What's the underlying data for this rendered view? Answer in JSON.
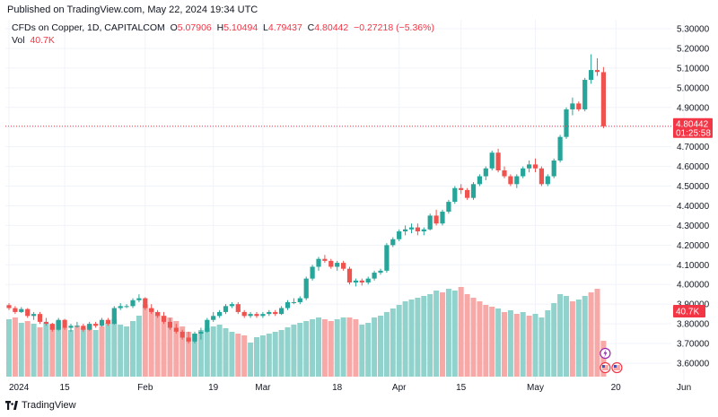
{
  "header": {
    "published": "Published on TradingView.com, May 22, 2024 19:34 UTC"
  },
  "legend": {
    "symbol": "CFDs on Copper, 1D, CAPITALCOM",
    "o_label": "O",
    "o_value": "5.07906",
    "h_label": "H",
    "h_value": "5.10494",
    "l_label": "L",
    "l_value": "4.79437",
    "c_label": "C",
    "c_value": "4.80442",
    "change": "−0.27218 (−5.36%)",
    "vol_label": "Vol",
    "vol_value": "40.7K"
  },
  "footer": {
    "brand": "TradingView"
  },
  "colors": {
    "up": "#26a69a",
    "down": "#ef5350",
    "vol_up": "#92d2cc",
    "vol_down": "#f7a9a7",
    "grid": "#f0f3fa",
    "price_tag": "#f23645",
    "price_line": "#f23645"
  },
  "chart_data": {
    "type": "candlestick",
    "title": "CFDs on Copper, 1D, CAPITALCOM",
    "ylim": [
      3.54,
      5.35
    ],
    "y_ticks": [
      "5.30000",
      "5.20000",
      "5.10000",
      "5.00000",
      "4.90000",
      "4.80000",
      "4.70000",
      "4.60000",
      "4.50000",
      "4.40000",
      "4.30000",
      "4.20000",
      "4.10000",
      "4.00000",
      "3.90000",
      "3.80000",
      "3.70000",
      "3.60000"
    ],
    "x_ticks": [
      {
        "label": "2024",
        "index": 0
      },
      {
        "label": "15",
        "index": 9
      },
      {
        "label": "Feb",
        "index": 22
      },
      {
        "label": "19",
        "index": 33
      },
      {
        "label": "Mar",
        "index": 41
      },
      {
        "label": "18",
        "index": 53
      },
      {
        "label": "Apr",
        "index": 63
      },
      {
        "label": "15",
        "index": 73
      },
      {
        "label": "May",
        "index": 85
      },
      {
        "label": "20",
        "index": 98
      },
      {
        "label": "Jun",
        "index": 109
      }
    ],
    "last_price": "4.80442",
    "countdown": "01:25:58",
    "volume_label": "40.7K",
    "volume_max": 100,
    "candles": [
      [
        3.895,
        3.905,
        3.87,
        3.88
      ],
      [
        3.88,
        3.89,
        3.85,
        3.86
      ],
      [
        3.86,
        3.885,
        3.855,
        3.875
      ],
      [
        3.875,
        3.88,
        3.83,
        3.84
      ],
      [
        3.84,
        3.86,
        3.82,
        3.85
      ],
      [
        3.85,
        3.86,
        3.8,
        3.81
      ],
      [
        3.81,
        3.83,
        3.79,
        3.8
      ],
      [
        3.8,
        3.805,
        3.76,
        3.77
      ],
      [
        3.77,
        3.83,
        3.765,
        3.82
      ],
      [
        3.82,
        3.825,
        3.77,
        3.78
      ],
      [
        3.78,
        3.8,
        3.76,
        3.79
      ],
      [
        3.79,
        3.81,
        3.78,
        3.79
      ],
      [
        3.79,
        3.8,
        3.76,
        3.77
      ],
      [
        3.77,
        3.81,
        3.765,
        3.8
      ],
      [
        3.8,
        3.81,
        3.78,
        3.79
      ],
      [
        3.79,
        3.83,
        3.785,
        3.82
      ],
      [
        3.82,
        3.83,
        3.79,
        3.8
      ],
      [
        3.8,
        3.89,
        3.795,
        3.88
      ],
      [
        3.88,
        3.905,
        3.87,
        3.89
      ],
      [
        3.89,
        3.9,
        3.88,
        3.89
      ],
      [
        3.89,
        3.93,
        3.88,
        3.92
      ],
      [
        3.92,
        3.95,
        3.91,
        3.93
      ],
      [
        3.93,
        3.935,
        3.87,
        3.88
      ],
      [
        3.88,
        3.9,
        3.85,
        3.86
      ],
      [
        3.86,
        3.87,
        3.83,
        3.84
      ],
      [
        3.84,
        3.86,
        3.8,
        3.81
      ],
      [
        3.81,
        3.83,
        3.77,
        3.78
      ],
      [
        3.78,
        3.8,
        3.75,
        3.76
      ],
      [
        3.76,
        3.77,
        3.72,
        3.73
      ],
      [
        3.73,
        3.76,
        3.7,
        3.71
      ],
      [
        3.71,
        3.76,
        3.7,
        3.75
      ],
      [
        3.75,
        3.78,
        3.72,
        3.76
      ],
      [
        3.76,
        3.83,
        3.755,
        3.82
      ],
      [
        3.82,
        3.86,
        3.81,
        3.84
      ],
      [
        3.84,
        3.87,
        3.83,
        3.86
      ],
      [
        3.86,
        3.9,
        3.85,
        3.89
      ],
      [
        3.89,
        3.91,
        3.88,
        3.9
      ],
      [
        3.9,
        3.91,
        3.85,
        3.86
      ],
      [
        3.86,
        3.87,
        3.83,
        3.84
      ],
      [
        3.84,
        3.86,
        3.83,
        3.85
      ],
      [
        3.85,
        3.86,
        3.83,
        3.84
      ],
      [
        3.84,
        3.86,
        3.83,
        3.85
      ],
      [
        3.85,
        3.87,
        3.84,
        3.86
      ],
      [
        3.86,
        3.87,
        3.84,
        3.85
      ],
      [
        3.85,
        3.89,
        3.845,
        3.88
      ],
      [
        3.88,
        3.92,
        3.87,
        3.91
      ],
      [
        3.91,
        3.93,
        3.9,
        3.91
      ],
      [
        3.91,
        3.94,
        3.9,
        3.93
      ],
      [
        3.93,
        4.04,
        3.92,
        4.03
      ],
      [
        4.03,
        4.1,
        4.02,
        4.09
      ],
      [
        4.09,
        4.14,
        4.07,
        4.13
      ],
      [
        4.13,
        4.15,
        4.11,
        4.12
      ],
      [
        4.12,
        4.13,
        4.08,
        4.09
      ],
      [
        4.09,
        4.12,
        4.07,
        4.11
      ],
      [
        4.11,
        4.12,
        4.07,
        4.08
      ],
      [
        4.08,
        4.09,
        4.0,
        4.01
      ],
      [
        4.01,
        4.03,
        3.99,
        4.02
      ],
      [
        4.02,
        4.03,
        3.995,
        4.01
      ],
      [
        4.01,
        4.04,
        4.0,
        4.03
      ],
      [
        4.03,
        4.07,
        4.02,
        4.06
      ],
      [
        4.06,
        4.08,
        4.05,
        4.07
      ],
      [
        4.07,
        4.21,
        4.06,
        4.2
      ],
      [
        4.2,
        4.24,
        4.19,
        4.23
      ],
      [
        4.23,
        4.28,
        4.22,
        4.27
      ],
      [
        4.27,
        4.3,
        4.25,
        4.28
      ],
      [
        4.28,
        4.31,
        4.26,
        4.29
      ],
      [
        4.29,
        4.31,
        4.25,
        4.27
      ],
      [
        4.27,
        4.29,
        4.25,
        4.28
      ],
      [
        4.28,
        4.36,
        4.275,
        4.35
      ],
      [
        4.35,
        4.38,
        4.3,
        4.31
      ],
      [
        4.31,
        4.38,
        4.3,
        4.37
      ],
      [
        4.37,
        4.43,
        4.36,
        4.42
      ],
      [
        4.42,
        4.5,
        4.41,
        4.49
      ],
      [
        4.49,
        4.51,
        4.46,
        4.48
      ],
      [
        4.48,
        4.49,
        4.43,
        4.44
      ],
      [
        4.44,
        4.52,
        4.43,
        4.51
      ],
      [
        4.51,
        4.56,
        4.5,
        4.55
      ],
      [
        4.55,
        4.6,
        4.53,
        4.59
      ],
      [
        4.59,
        4.68,
        4.58,
        4.67
      ],
      [
        4.67,
        4.69,
        4.57,
        4.58
      ],
      [
        4.58,
        4.6,
        4.54,
        4.55
      ],
      [
        4.55,
        4.56,
        4.5,
        4.51
      ],
      [
        4.51,
        4.56,
        4.49,
        4.55
      ],
      [
        4.55,
        4.6,
        4.54,
        4.59
      ],
      [
        4.59,
        4.63,
        4.57,
        4.61
      ],
      [
        4.61,
        4.64,
        4.57,
        4.59
      ],
      [
        4.59,
        4.6,
        4.5,
        4.51
      ],
      [
        4.51,
        4.56,
        4.5,
        4.55
      ],
      [
        4.55,
        4.64,
        4.54,
        4.63
      ],
      [
        4.63,
        4.76,
        4.62,
        4.75
      ],
      [
        4.75,
        4.9,
        4.74,
        4.89
      ],
      [
        4.89,
        4.95,
        4.86,
        4.92
      ],
      [
        4.92,
        4.93,
        4.88,
        4.89
      ],
      [
        4.89,
        5.05,
        4.88,
        5.04
      ],
      [
        5.04,
        5.17,
        5.02,
        5.09
      ],
      [
        5.09,
        5.15,
        5.06,
        5.08
      ],
      [
        5.079,
        5.105,
        4.794,
        4.804
      ]
    ],
    "volume": [
      [
        64,
        1
      ],
      [
        66,
        0
      ],
      [
        60,
        1
      ],
      [
        62,
        0
      ],
      [
        59,
        1
      ],
      [
        55,
        0
      ],
      [
        60,
        1
      ],
      [
        58,
        0
      ],
      [
        62,
        1
      ],
      [
        55,
        0
      ],
      [
        52,
        1
      ],
      [
        57,
        0
      ],
      [
        54,
        1
      ],
      [
        58,
        0
      ],
      [
        52,
        1
      ],
      [
        56,
        0
      ],
      [
        60,
        1
      ],
      [
        64,
        1
      ],
      [
        58,
        1
      ],
      [
        56,
        1
      ],
      [
        62,
        1
      ],
      [
        68,
        1
      ],
      [
        80,
        0
      ],
      [
        76,
        0
      ],
      [
        72,
        0
      ],
      [
        68,
        0
      ],
      [
        66,
        0
      ],
      [
        62,
        0
      ],
      [
        56,
        0
      ],
      [
        50,
        0
      ],
      [
        48,
        1
      ],
      [
        52,
        1
      ],
      [
        54,
        1
      ],
      [
        56,
        1
      ],
      [
        58,
        1
      ],
      [
        54,
        1
      ],
      [
        50,
        1
      ],
      [
        48,
        0
      ],
      [
        46,
        0
      ],
      [
        38,
        1
      ],
      [
        44,
        1
      ],
      [
        46,
        1
      ],
      [
        48,
        1
      ],
      [
        50,
        1
      ],
      [
        52,
        1
      ],
      [
        55,
        1
      ],
      [
        58,
        1
      ],
      [
        60,
        1
      ],
      [
        62,
        1
      ],
      [
        64,
        1
      ],
      [
        66,
        1
      ],
      [
        64,
        0
      ],
      [
        62,
        0
      ],
      [
        64,
        1
      ],
      [
        66,
        1
      ],
      [
        66,
        0
      ],
      [
        64,
        0
      ],
      [
        58,
        1
      ],
      [
        60,
        1
      ],
      [
        66,
        1
      ],
      [
        68,
        1
      ],
      [
        72,
        1
      ],
      [
        76,
        1
      ],
      [
        80,
        1
      ],
      [
        84,
        1
      ],
      [
        86,
        1
      ],
      [
        88,
        1
      ],
      [
        90,
        1
      ],
      [
        92,
        1
      ],
      [
        96,
        1
      ],
      [
        94,
        0
      ],
      [
        98,
        1
      ],
      [
        96,
        1
      ],
      [
        100,
        0
      ],
      [
        92,
        0
      ],
      [
        88,
        0
      ],
      [
        84,
        0
      ],
      [
        80,
        0
      ],
      [
        78,
        0
      ],
      [
        76,
        1
      ],
      [
        72,
        0
      ],
      [
        74,
        1
      ],
      [
        70,
        0
      ],
      [
        72,
        1
      ],
      [
        68,
        0
      ],
      [
        70,
        1
      ],
      [
        66,
        1
      ],
      [
        74,
        1
      ],
      [
        82,
        1
      ],
      [
        92,
        1
      ],
      [
        90,
        1
      ],
      [
        84,
        0
      ],
      [
        86,
        1
      ],
      [
        90,
        1
      ],
      [
        94,
        0
      ],
      [
        98,
        0
      ],
      [
        40,
        0
      ]
    ]
  }
}
